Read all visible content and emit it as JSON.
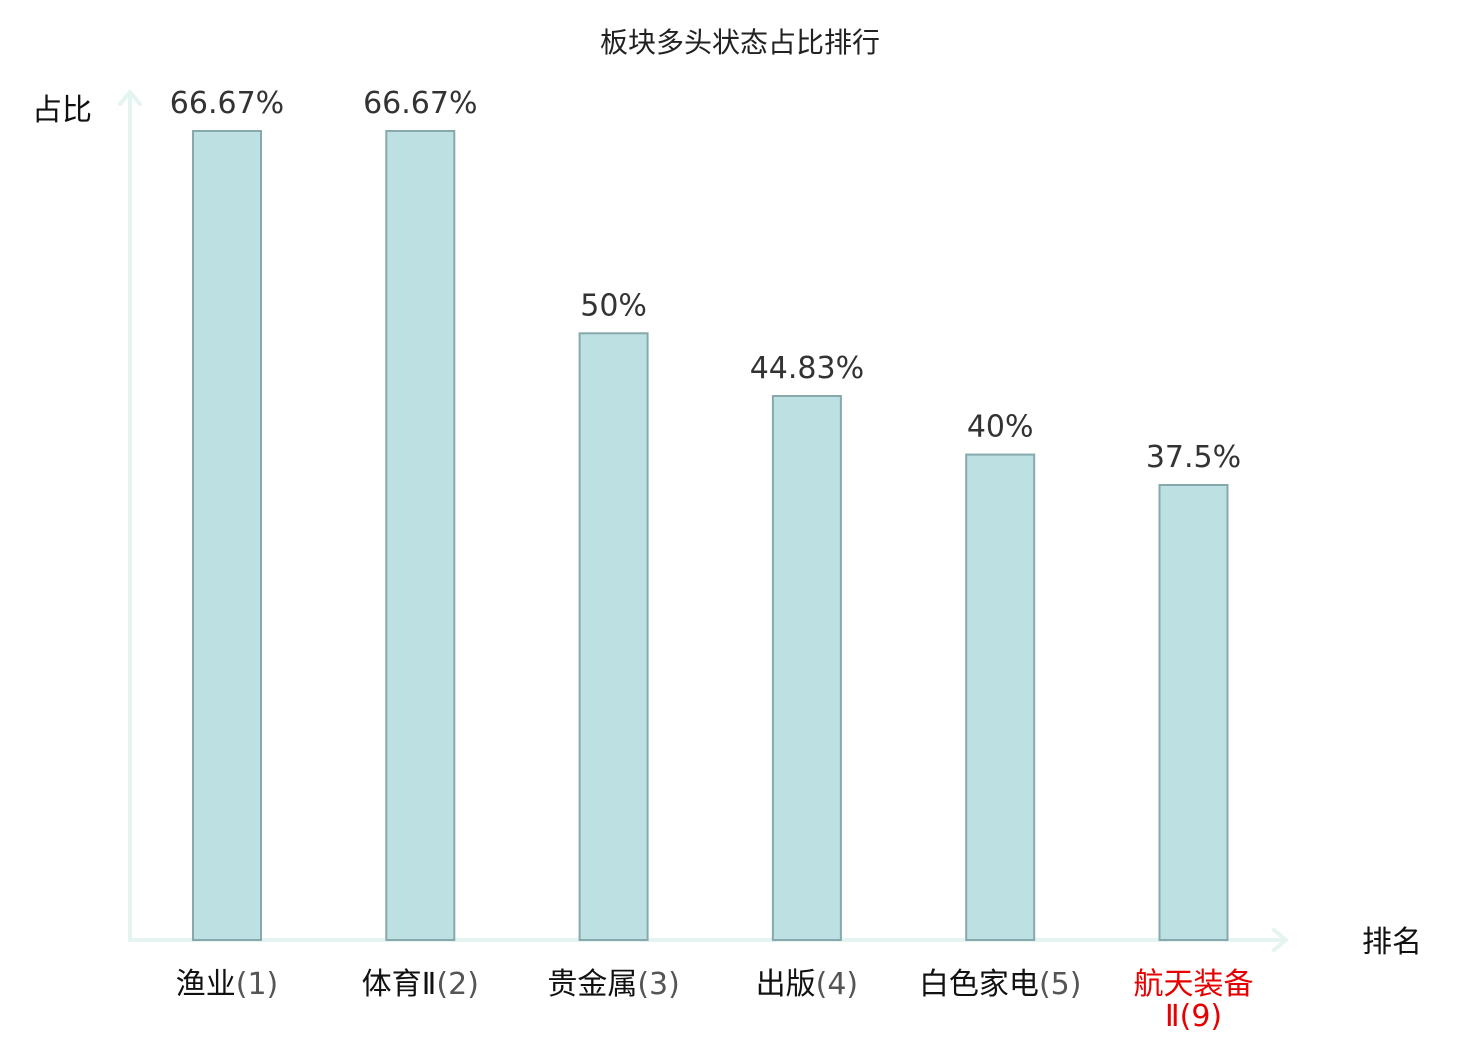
{
  "chart_data": {
    "type": "bar",
    "title": "板块多头状态占比排行",
    "ylabel": "占比",
    "xlabel": "排名",
    "categories": [
      {
        "name": "渔业",
        "rank": "(1)",
        "highlight": false
      },
      {
        "name": "体育Ⅱ",
        "rank": "(2)",
        "highlight": false
      },
      {
        "name": "贵金属",
        "rank": "(3)",
        "highlight": false
      },
      {
        "name": "出版",
        "rank": "(4)",
        "highlight": false
      },
      {
        "name": "白色家电",
        "rank": "(5)",
        "highlight": false
      },
      {
        "name": "航天装备",
        "rank": "Ⅱ(9)",
        "highlight": true
      }
    ],
    "values": [
      66.67,
      66.67,
      50,
      44.83,
      40,
      37.5
    ],
    "value_labels": [
      "66.67%",
      "66.67%",
      "50%",
      "44.83%",
      "40%",
      "37.5%"
    ],
    "ylim": [
      0,
      66.67
    ],
    "grid": false,
    "legend": "none",
    "colors": {
      "bar_fill": "#bde0e3",
      "bar_stroke": "#87a9ab",
      "axis": "#e3f4f1",
      "highlight": "#e60000"
    }
  }
}
